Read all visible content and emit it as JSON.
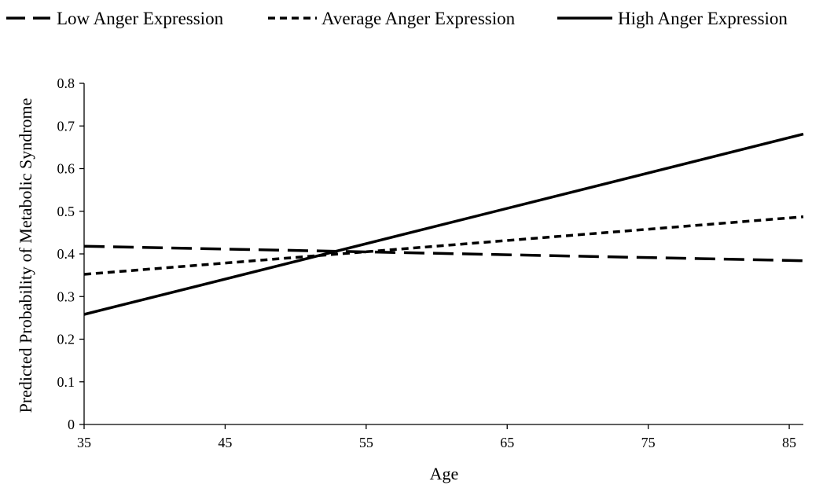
{
  "chart_data": {
    "type": "line",
    "xlabel": "Age",
    "ylabel": "Predicted Probability of Metabolic Syndrome",
    "xlim": [
      35,
      86
    ],
    "ylim": [
      0,
      0.8
    ],
    "x_ticks": [
      35,
      45,
      55,
      65,
      75,
      85
    ],
    "y_ticks": [
      0,
      0.1,
      0.2,
      0.3,
      0.4,
      0.5,
      0.6,
      0.7,
      0.8
    ],
    "legend_position": "top",
    "grid": false,
    "series": [
      {
        "name": "Low Anger Expression",
        "line_style": "long-dash",
        "color": "#000000",
        "x": [
          35,
          86
        ],
        "y": [
          0.418,
          0.384
        ]
      },
      {
        "name": "Average Anger Expression",
        "line_style": "short-dash",
        "color": "#000000",
        "x": [
          35,
          86
        ],
        "y": [
          0.352,
          0.487
        ]
      },
      {
        "name": "High Anger Expression",
        "line_style": "solid",
        "color": "#000000",
        "x": [
          35,
          86
        ],
        "y": [
          0.258,
          0.681
        ]
      }
    ]
  }
}
